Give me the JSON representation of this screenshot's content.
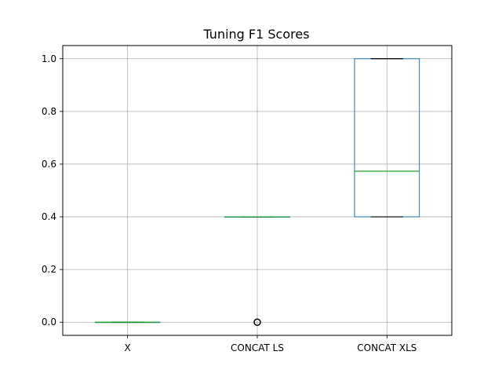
{
  "chart_data": {
    "type": "box",
    "title": "Tuning F1 Scores",
    "xlabel": "",
    "ylabel": "",
    "categories": [
      "X",
      "CONCAT LS",
      "CONCAT XLS"
    ],
    "ylim": [
      -0.05,
      1.05
    ],
    "yticks": [
      "0.0",
      "0.2",
      "0.4",
      "0.6",
      "0.8",
      "1.0"
    ],
    "grid": true,
    "boxes": [
      {
        "name": "X",
        "whisker_low": 0.0,
        "q1": 0.0,
        "median": 0.0,
        "q3": 0.0,
        "whisker_high": 0.0,
        "outliers": []
      },
      {
        "name": "CONCAT LS",
        "whisker_low": 0.4,
        "q1": 0.4,
        "median": 0.4,
        "q3": 0.4,
        "whisker_high": 0.4,
        "outliers": [
          0.0
        ]
      },
      {
        "name": "CONCAT XLS",
        "whisker_low": 0.4,
        "q1": 0.4,
        "median": 0.573,
        "q3": 1.0,
        "whisker_high": 1.0,
        "outliers": []
      }
    ],
    "colors": {
      "box": "#1f77b4",
      "median": "#2ca02c",
      "whisker": "#000000",
      "grid": "#b0b0b0"
    }
  }
}
